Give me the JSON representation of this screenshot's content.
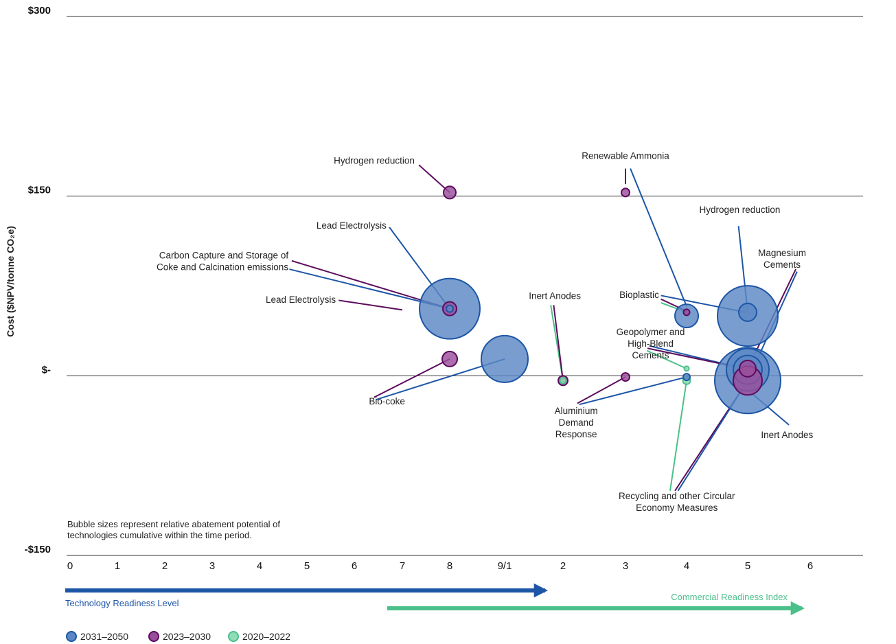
{
  "chart_data": {
    "type": "scatter",
    "title": "",
    "ylabel": "Cost ($NPV/tonne CO₂e)",
    "ylim": [
      -150,
      300
    ],
    "y_ticks": [
      {
        "value": 300,
        "label": "$300"
      },
      {
        "value": 150,
        "label": "$150"
      },
      {
        "value": 0,
        "label": "$-"
      },
      {
        "value": -150,
        "label": "-$150"
      }
    ],
    "x_ticks": [
      "0",
      "1",
      "2",
      "3",
      "4",
      "5",
      "6",
      "7",
      "8",
      "9/1",
      "2",
      "3",
      "4",
      "5",
      "6"
    ],
    "x_axis_note": "Bubble sizes represent relative abatement potential of technologies cumulative within the time period.",
    "axis_scales": [
      {
        "name": "Technology Readiness Level",
        "color": "#1d56a6"
      },
      {
        "name": "Commercial Readiness Index",
        "color": "#4cc08a"
      }
    ],
    "series": [
      {
        "name": "2031–2050",
        "color": "#5b87c5",
        "stroke": "#1d56a6"
      },
      {
        "name": "2023–2030",
        "color": "#9a4e9b",
        "stroke": "#5c0b5c"
      },
      {
        "name": "2020–2022",
        "color": "#8fdcb8",
        "stroke": "#4cc08a"
      }
    ],
    "points": [
      {
        "series": 1,
        "x": 8,
        "y": 153,
        "size": 18
      },
      {
        "series": 1,
        "x": 8,
        "y": 56,
        "size": 20
      },
      {
        "series": 0,
        "x": 8,
        "y": 56,
        "size": 88
      },
      {
        "series": 0,
        "x": 8,
        "y": 56,
        "size": 10
      },
      {
        "series": 1,
        "x": 8,
        "y": 14,
        "size": 22
      },
      {
        "series": 0,
        "x": 9,
        "y": 14,
        "size": 68
      },
      {
        "series": 1,
        "x": 10,
        "y": -4,
        "size": 14
      },
      {
        "series": 2,
        "x": 10,
        "y": -4,
        "size": 9
      },
      {
        "series": 1,
        "x": 11,
        "y": 153,
        "size": 12
      },
      {
        "series": 1,
        "x": 11,
        "y": -1,
        "size": 12
      },
      {
        "series": 0,
        "x": 12,
        "y": 50,
        "size": 34
      },
      {
        "series": 1,
        "x": 12,
        "y": 53,
        "size": 9
      },
      {
        "series": 2,
        "x": 12,
        "y": 6,
        "size": 7
      },
      {
        "series": 0,
        "x": 12,
        "y": -1,
        "size": 10
      },
      {
        "series": 2,
        "x": 12,
        "y": -4,
        "size": 11
      },
      {
        "series": 0,
        "x": 13,
        "y": 50,
        "size": 88
      },
      {
        "series": 0,
        "x": 13,
        "y": 53,
        "size": 26
      },
      {
        "series": 0,
        "x": 13,
        "y": 5,
        "size": 62
      },
      {
        "series": 0,
        "x": 13,
        "y": 5,
        "size": 42
      },
      {
        "series": 0,
        "x": 13,
        "y": -4,
        "size": 96
      },
      {
        "series": 1,
        "x": 13,
        "y": -4,
        "size": 42
      },
      {
        "series": 1,
        "x": 13,
        "y": 6,
        "size": 24
      }
    ],
    "annotations": [
      {
        "text": [
          "Hydrogen reduction"
        ],
        "anchor": "end",
        "tx": 7.26,
        "ty": 177,
        "leaders": [
          {
            "from": [
              7.35,
              176
            ],
            "to": [
              8,
              153
            ],
            "series": 1
          }
        ]
      },
      {
        "text": [
          "Renewable Ammonia"
        ],
        "anchor": "middle",
        "tx": 11,
        "ty": 181,
        "leaders": [
          {
            "from": [
              11,
              173
            ],
            "to": [
              11,
              160
            ],
            "series": 1
          },
          {
            "from": [
              11.08,
              173
            ],
            "to": [
              12,
              58
            ],
            "series": 0
          }
        ]
      },
      {
        "text": [
          "Hydrogen reduction"
        ],
        "anchor": "middle",
        "tx": 12.87,
        "ty": 136,
        "leaders": [
          {
            "from": [
              12.85,
              125
            ],
            "to": [
              13,
              53
            ],
            "series": 0
          }
        ]
      },
      {
        "text": [
          "Lead Electrolysis"
        ],
        "anchor": "end",
        "tx": 6.67,
        "ty": 123,
        "leaders": [
          {
            "from": [
              6.73,
              124
            ],
            "to": [
              8,
              56
            ],
            "series": 0
          }
        ]
      },
      {
        "text": [
          "Carbon Capture and Storage of",
          "Coke and Calcination emissions"
        ],
        "anchor": "end",
        "tx": 4.61,
        "ty": 98,
        "leaders": [
          {
            "from": [
              4.68,
              96
            ],
            "to": [
              8,
              56
            ],
            "series": 1
          },
          {
            "from": [
              4.63,
              89
            ],
            "to": [
              8,
              56
            ],
            "series": 0
          }
        ]
      },
      {
        "text": [
          "Lead Electrolysis"
        ],
        "anchor": "end",
        "tx": 5.61,
        "ty": 61,
        "leaders": [
          {
            "from": [
              5.67,
              63
            ],
            "to": [
              7,
              55
            ],
            "series": 1
          }
        ]
      },
      {
        "text": [
          "Bio-coke"
        ],
        "anchor": "middle",
        "tx": 6.68,
        "ty": -24,
        "leaders": [
          {
            "from": [
              6.41,
              -18
            ],
            "to": [
              8,
              14
            ],
            "series": 1
          },
          {
            "from": [
              6.45,
              -20
            ],
            "to": [
              9,
              14
            ],
            "series": 0
          }
        ]
      },
      {
        "text": [
          "Inert Anodes"
        ],
        "anchor": "middle",
        "tx": 9.86,
        "ty": 64,
        "leaders": [
          {
            "from": [
              9.79,
              59
            ],
            "to": [
              10,
              -4
            ],
            "series": 2
          },
          {
            "from": [
              9.84,
              59
            ],
            "to": [
              10,
              -4
            ],
            "series": 1
          }
        ]
      },
      {
        "text": [
          "Bioplastic"
        ],
        "anchor": "end",
        "tx": 11.55,
        "ty": 65,
        "leaders": [
          {
            "from": [
              11.58,
              67
            ],
            "to": [
              12.97,
              53
            ],
            "series": 0
          },
          {
            "from": [
              11.58,
              64
            ],
            "to": [
              12,
              54
            ],
            "series": 1
          },
          {
            "from": [
              11.58,
              61
            ],
            "to": [
              12,
              53
            ],
            "series": 2
          }
        ]
      },
      {
        "text": [
          "Geopolymer and",
          "High-Blend",
          "Cements"
        ],
        "anchor": "middle",
        "tx": 11.41,
        "ty": 34,
        "leaders": [
          {
            "from": [
              11.39,
              25
            ],
            "to": [
              12.94,
              6
            ],
            "series": 0
          },
          {
            "from": [
              11.36,
              23
            ],
            "to": [
              12.94,
              6
            ],
            "series": 1
          },
          {
            "from": [
              11.35,
              21
            ],
            "to": [
              12,
              6
            ],
            "series": 2
          }
        ]
      },
      {
        "text": [
          "Magnesium",
          "Cements"
        ],
        "anchor": "middle",
        "tx": 13.55,
        "ty": 100,
        "leaders": [
          {
            "from": [
              13.77,
              89
            ],
            "to": [
              13,
              6
            ],
            "series": 1
          },
          {
            "from": [
              13.79,
              87
            ],
            "to": [
              13,
              -4
            ],
            "series": 0
          }
        ]
      },
      {
        "text": [
          "Aluminium",
          "Demand",
          "Response"
        ],
        "anchor": "middle",
        "tx": 10.21,
        "ty": -32,
        "leaders": [
          {
            "from": [
              10.23,
              -23
            ],
            "to": [
              11,
              -1
            ],
            "series": 1
          },
          {
            "from": [
              10.26,
              -24
            ],
            "to": [
              12,
              -1
            ],
            "series": 0
          }
        ]
      },
      {
        "text": [
          "Inert Anodes"
        ],
        "anchor": "middle",
        "tx": 13.63,
        "ty": -52,
        "leaders": [
          {
            "from": [
              13.66,
              -41
            ],
            "to": [
              13.05,
              -14
            ],
            "series": 0
          }
        ]
      },
      {
        "text": [
          "Recycling and other Circular",
          "Economy Measures"
        ],
        "anchor": "middle",
        "tx": 11.84,
        "ty": -103,
        "leaders": [
          {
            "from": [
              11.73,
              -96
            ],
            "to": [
              12,
              -4
            ],
            "series": 2
          },
          {
            "from": [
              11.81,
              -96
            ],
            "to": [
              13,
              -4
            ],
            "series": 1
          },
          {
            "from": [
              11.86,
              -96
            ],
            "to": [
              13,
              -4
            ],
            "series": 0
          }
        ]
      }
    ],
    "grid": true,
    "legend_position": "bottom-left"
  }
}
